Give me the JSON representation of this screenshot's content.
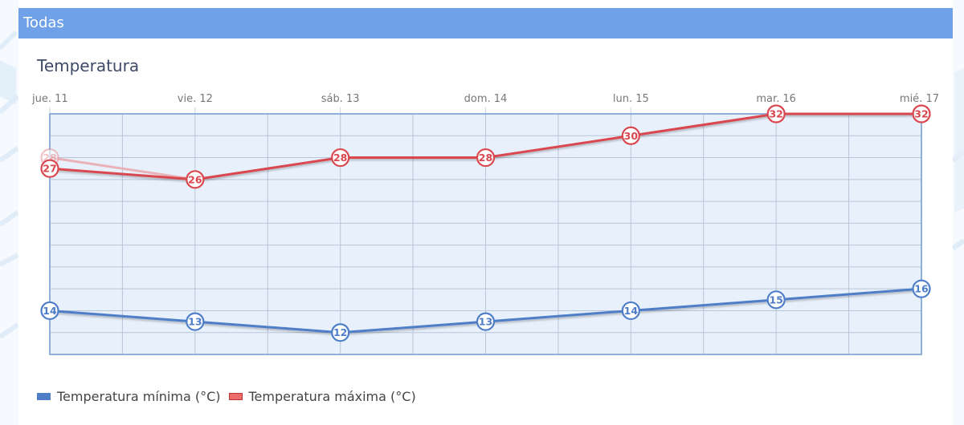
{
  "header": {
    "title": "Todas"
  },
  "chart": {
    "title": "Temperatura",
    "legend": [
      {
        "label": "Temperatura mínima (°C)",
        "color": "#4f7ec9"
      },
      {
        "label": "Temperatura máxima (°C)",
        "color": "#e05a5a"
      }
    ]
  },
  "colors": {
    "header_bg": "#6fa1e9",
    "plot_bg": "#e8f0fb",
    "grid": "#b7c6d9",
    "plot_border": "#8fb0d8",
    "min_series": "#4f7ec9",
    "max_series": "#d9474f"
  },
  "chart_data": {
    "type": "line",
    "title": "Temperatura",
    "xlabel": "",
    "ylabel": "",
    "categories": [
      "jue. 11",
      "vie. 12",
      "sáb. 13",
      "dom. 14",
      "lun. 15",
      "mar. 16",
      "mié. 17"
    ],
    "series": [
      {
        "name": "Temperatura mínima (°C)",
        "color": "#4f7ec9",
        "values": [
          14,
          13,
          12,
          13,
          14,
          15,
          16
        ]
      },
      {
        "name": "Temperatura máxima (°C)",
        "color": "#d9474f",
        "values": [
          27,
          26,
          28,
          28,
          30,
          32,
          32
        ]
      }
    ],
    "ghost_point": {
      "category": "jue. 11",
      "value": 28,
      "series": "Temperatura máxima (°C)",
      "note": "faded overlapping marker"
    },
    "ylim": [
      10,
      32
    ],
    "y_grid_step": 2,
    "grid": true,
    "data_labels": true,
    "legend_position": "bottom-left",
    "x_axis_position": "top"
  }
}
